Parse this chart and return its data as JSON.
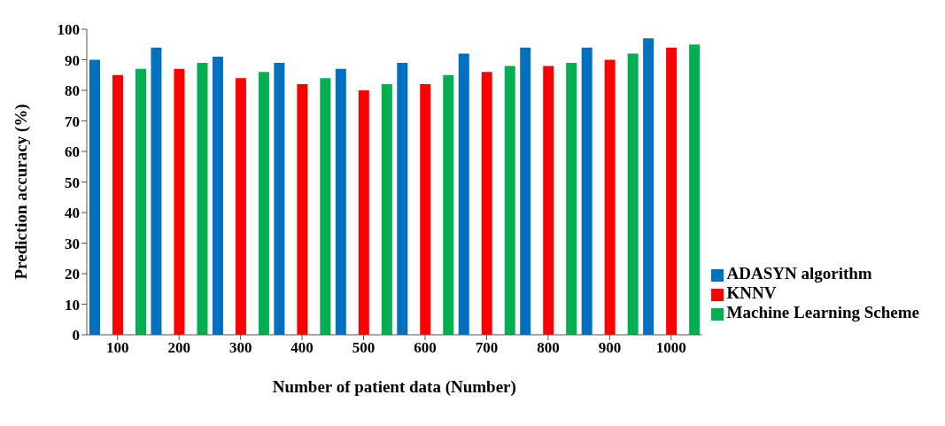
{
  "chart_data": {
    "type": "bar",
    "xlabel": "Number of patient data (Number)",
    "ylabel": "Prediction accuracy (%)",
    "categories": [
      "100",
      "200",
      "300",
      "400",
      "500",
      "600",
      "700",
      "800",
      "900",
      "1000"
    ],
    "series": [
      {
        "name": "ADASYN algorithm",
        "color": "#0070c0",
        "values": [
          90,
          94,
          91,
          89,
          87,
          89,
          92,
          94,
          94,
          97
        ]
      },
      {
        "name": "KNNV",
        "color": "#ff0000",
        "values": [
          85,
          87,
          84,
          82,
          80,
          82,
          86,
          88,
          90,
          94
        ]
      },
      {
        "name": "Machine Learning Scheme",
        "color": "#00b050",
        "values": [
          87,
          89,
          86,
          84,
          82,
          85,
          88,
          89,
          92,
          95
        ]
      }
    ],
    "ylim": [
      0,
      100
    ],
    "yticks": [
      0,
      10,
      20,
      30,
      40,
      50,
      60,
      70,
      80,
      90,
      100
    ],
    "grid": false,
    "legend": "right"
  }
}
